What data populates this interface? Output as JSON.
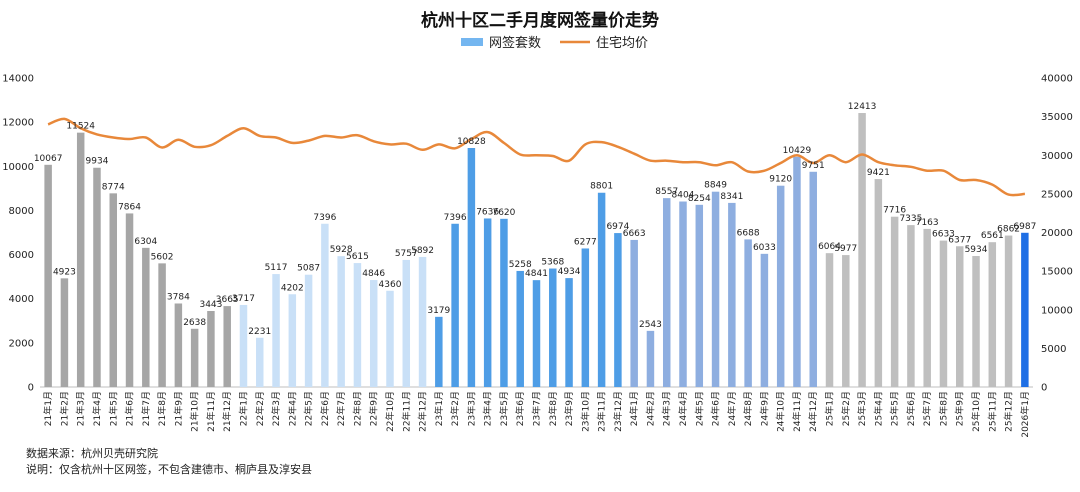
{
  "chart_data": {
    "type": "bar",
    "title": "杭州十区二手月度网签量价走势",
    "legend": [
      "网签套数",
      "住宅均价"
    ],
    "legend_position": "top",
    "grid": false,
    "y_left_ticks": [
      "0",
      "2000",
      "4000",
      "6000",
      "8000",
      "10000",
      "12000",
      "14000"
    ],
    "y_right_ticks": [
      "0",
      "5000",
      "10000",
      "15000",
      "20000",
      "25000",
      "30000",
      "35000",
      "40000"
    ],
    "ylim_left": [
      0,
      14000
    ],
    "ylim_right": [
      0,
      40000
    ],
    "categories": [
      "21年1月",
      "21年2月",
      "21年3月",
      "21年4月",
      "21年5月",
      "21年6月",
      "21年7月",
      "21年8月",
      "21年9月",
      "21年10月",
      "21年11月",
      "21年12月",
      "22年1月",
      "22年2月",
      "22年3月",
      "22年4月",
      "22年5月",
      "22年6月",
      "22年7月",
      "22年8月",
      "22年9月",
      "22年10月",
      "22年11月",
      "22年12月",
      "23年1月",
      "23年2月",
      "23年3月",
      "23年4月",
      "23年5月",
      "23年6月",
      "23年7月",
      "23年8月",
      "23年9月",
      "23年10月",
      "23年11月",
      "23年12月",
      "24年1月",
      "24年2月",
      "24年3月",
      "24年4月",
      "24年5月",
      "24年6月",
      "24年7月",
      "24年8月",
      "24年9月",
      "24年10月",
      "24年11月",
      "24年12月",
      "25年1月",
      "25年2月",
      "25年3月",
      "25年4月",
      "25年5月",
      "25年6月",
      "25年7月",
      "25年8月",
      "25年9月",
      "25年10月",
      "25年11月",
      "25年12月",
      "2026年1月"
    ],
    "series": [
      {
        "name": "网签套数",
        "type": "bar",
        "axis": "left",
        "values": [
          10067,
          4923,
          11524,
          9934,
          8774,
          7864,
          6304,
          5602,
          3784,
          2638,
          3443,
          3665,
          3717,
          2231,
          5117,
          4202,
          5087,
          7396,
          5928,
          5615,
          4846,
          4360,
          5757,
          5892,
          3179,
          7396,
          10828,
          7636,
          7620,
          5258,
          4841,
          5368,
          4934,
          6277,
          8801,
          6974,
          6663,
          2543,
          8557,
          8404,
          8254,
          8849,
          8341,
          6688,
          6033,
          9120,
          10429,
          9751,
          6064,
          5977,
          12413,
          9421,
          7716,
          7335,
          7163,
          6633,
          6377,
          5934,
          6561,
          6862,
          6987
        ]
      },
      {
        "name": "住宅均价",
        "type": "line",
        "axis": "right",
        "values": [
          34000,
          34700,
          33500,
          32700,
          32300,
          32100,
          32300,
          31000,
          32000,
          31100,
          31300,
          32500,
          33500,
          32500,
          32300,
          31600,
          31900,
          32500,
          32300,
          32600,
          31800,
          31400,
          31500,
          30700,
          31400,
          30900,
          32100,
          33000,
          31600,
          30100,
          30000,
          29900,
          29300,
          31400,
          31700,
          31100,
          30200,
          29300,
          29300,
          29100,
          29100,
          28700,
          29100,
          27900,
          28000,
          29000,
          30000,
          29000,
          30000,
          29100,
          30100,
          29100,
          28700,
          28500,
          28000,
          28000,
          26800,
          26800,
          26200,
          24900,
          25000
        ]
      }
    ],
    "bar_colors": {
      "2021": "#a6a6a6",
      "2022": "#c9e0f7",
      "2023": "#4e9de6",
      "2024": "#8eaee0",
      "2025": "#bfbfbf",
      "2026": "#1f6fe5"
    },
    "legend_bar_color": "#74b6f0",
    "line_color": "#e8883a"
  },
  "footer": {
    "source": "数据来源：杭州贝壳研究院",
    "note": "说明：仅含杭州十区网签，不包含建德市、桐庐县及淳安县"
  }
}
